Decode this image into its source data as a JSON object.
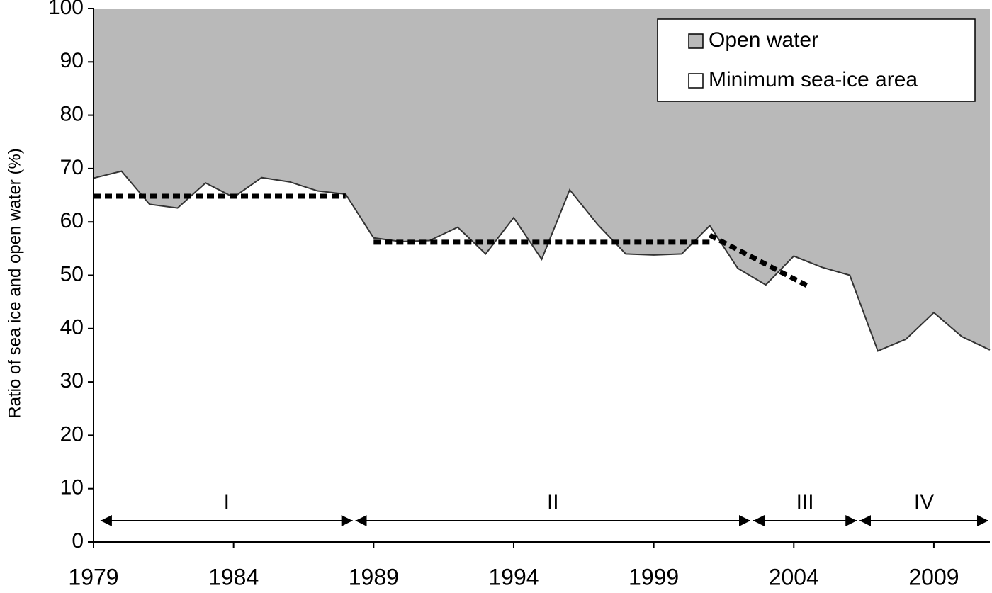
{
  "chart_data": {
    "type": "area",
    "y_label": "Ratio of sea ice and open water (%)",
    "x": [
      1979,
      1980,
      1981,
      1982,
      1983,
      1984,
      1985,
      1986,
      1987,
      1988,
      1989,
      1990,
      1991,
      1992,
      1993,
      1994,
      1995,
      1996,
      1997,
      1998,
      1999,
      2000,
      2001,
      2002,
      2003,
      2004,
      2005,
      2006,
      2007,
      2008,
      2009,
      2010,
      2011
    ],
    "series": [
      {
        "name": "Minimum sea-ice area",
        "color": "#ffffff",
        "values": [
          68.2,
          69.5,
          63.3,
          62.6,
          67.3,
          64.6,
          68.3,
          67.5,
          65.8,
          65.2,
          57,
          56.3,
          56.5,
          59,
          54,
          60.8,
          53,
          66,
          59.5,
          54,
          53.8,
          54,
          59.3,
          51.3,
          48.2,
          53.6,
          51.5,
          50,
          35.8,
          38,
          43,
          38.5,
          36
        ]
      }
    ],
    "background": {
      "name": "Open water",
      "color": "#b9b9b9"
    },
    "xlim": [
      1979,
      2011
    ],
    "xticks": [
      1979,
      1984,
      1989,
      1994,
      1999,
      2004,
      2009
    ],
    "ylim": [
      0,
      100
    ],
    "yticks": [
      0,
      10,
      20,
      30,
      40,
      50,
      60,
      70,
      80,
      90,
      100
    ],
    "trend_lines": [
      {
        "x": [
          1979,
          1988
        ],
        "y": [
          64.8,
          64.8
        ]
      },
      {
        "x": [
          1989,
          2001
        ],
        "y": [
          56.2,
          56.2
        ]
      },
      {
        "x": [
          2001,
          2004.5
        ],
        "y": [
          57.5,
          48
        ]
      }
    ],
    "periods": [
      {
        "label": "I",
        "x": [
          1979.2,
          1988.3
        ]
      },
      {
        "label": "II",
        "x": [
          1988.3,
          2002.5
        ]
      },
      {
        "label": "III",
        "x": [
          2002.5,
          2006.3
        ]
      },
      {
        "label": "IV",
        "x": [
          2006.3,
          2011
        ]
      }
    ],
    "legend_position": "upper right"
  }
}
